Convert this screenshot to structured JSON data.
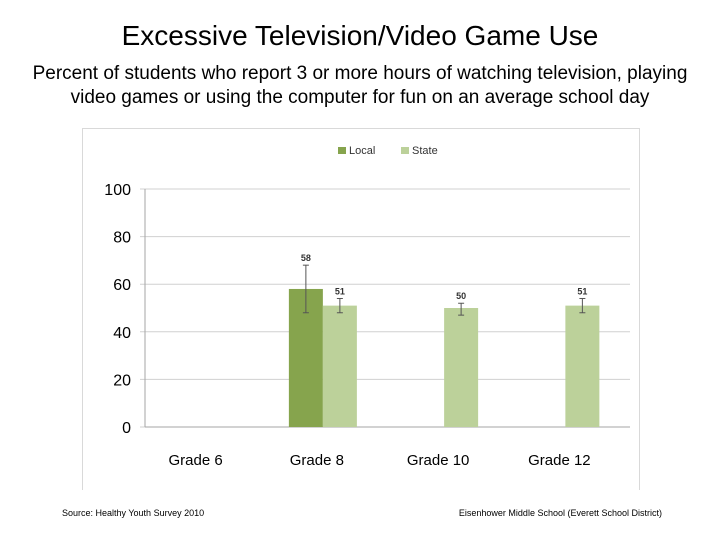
{
  "header": {
    "title": "Excessive Television/Video Game Use",
    "subtitle": "Percent of students who report 3 or more hours of watching television, playing video games or using the computer for fun on an average school day"
  },
  "footer": {
    "source": "Source: Healthy Youth Survey 2010",
    "school": "Eisenhower Middle School (Everett School District)"
  },
  "chart_data": {
    "type": "bar",
    "categories": [
      "Grade 6",
      "Grade 8",
      "Grade 10",
      "Grade 12"
    ],
    "series": [
      {
        "name": "Local",
        "color": "#86a44d",
        "values": [
          null,
          58,
          null,
          null
        ],
        "error": [
          null,
          [
            48,
            68
          ],
          null,
          null
        ]
      },
      {
        "name": "State",
        "color": "#bcd19a",
        "values": [
          null,
          51,
          50,
          51
        ],
        "error": [
          null,
          [
            48,
            54
          ],
          [
            47,
            52
          ],
          [
            48,
            54
          ]
        ]
      }
    ],
    "ylim": [
      0,
      100
    ],
    "yticks": [
      0,
      20,
      40,
      60,
      80,
      100
    ],
    "grid": true,
    "legend": "top-center",
    "data_labels": true
  }
}
